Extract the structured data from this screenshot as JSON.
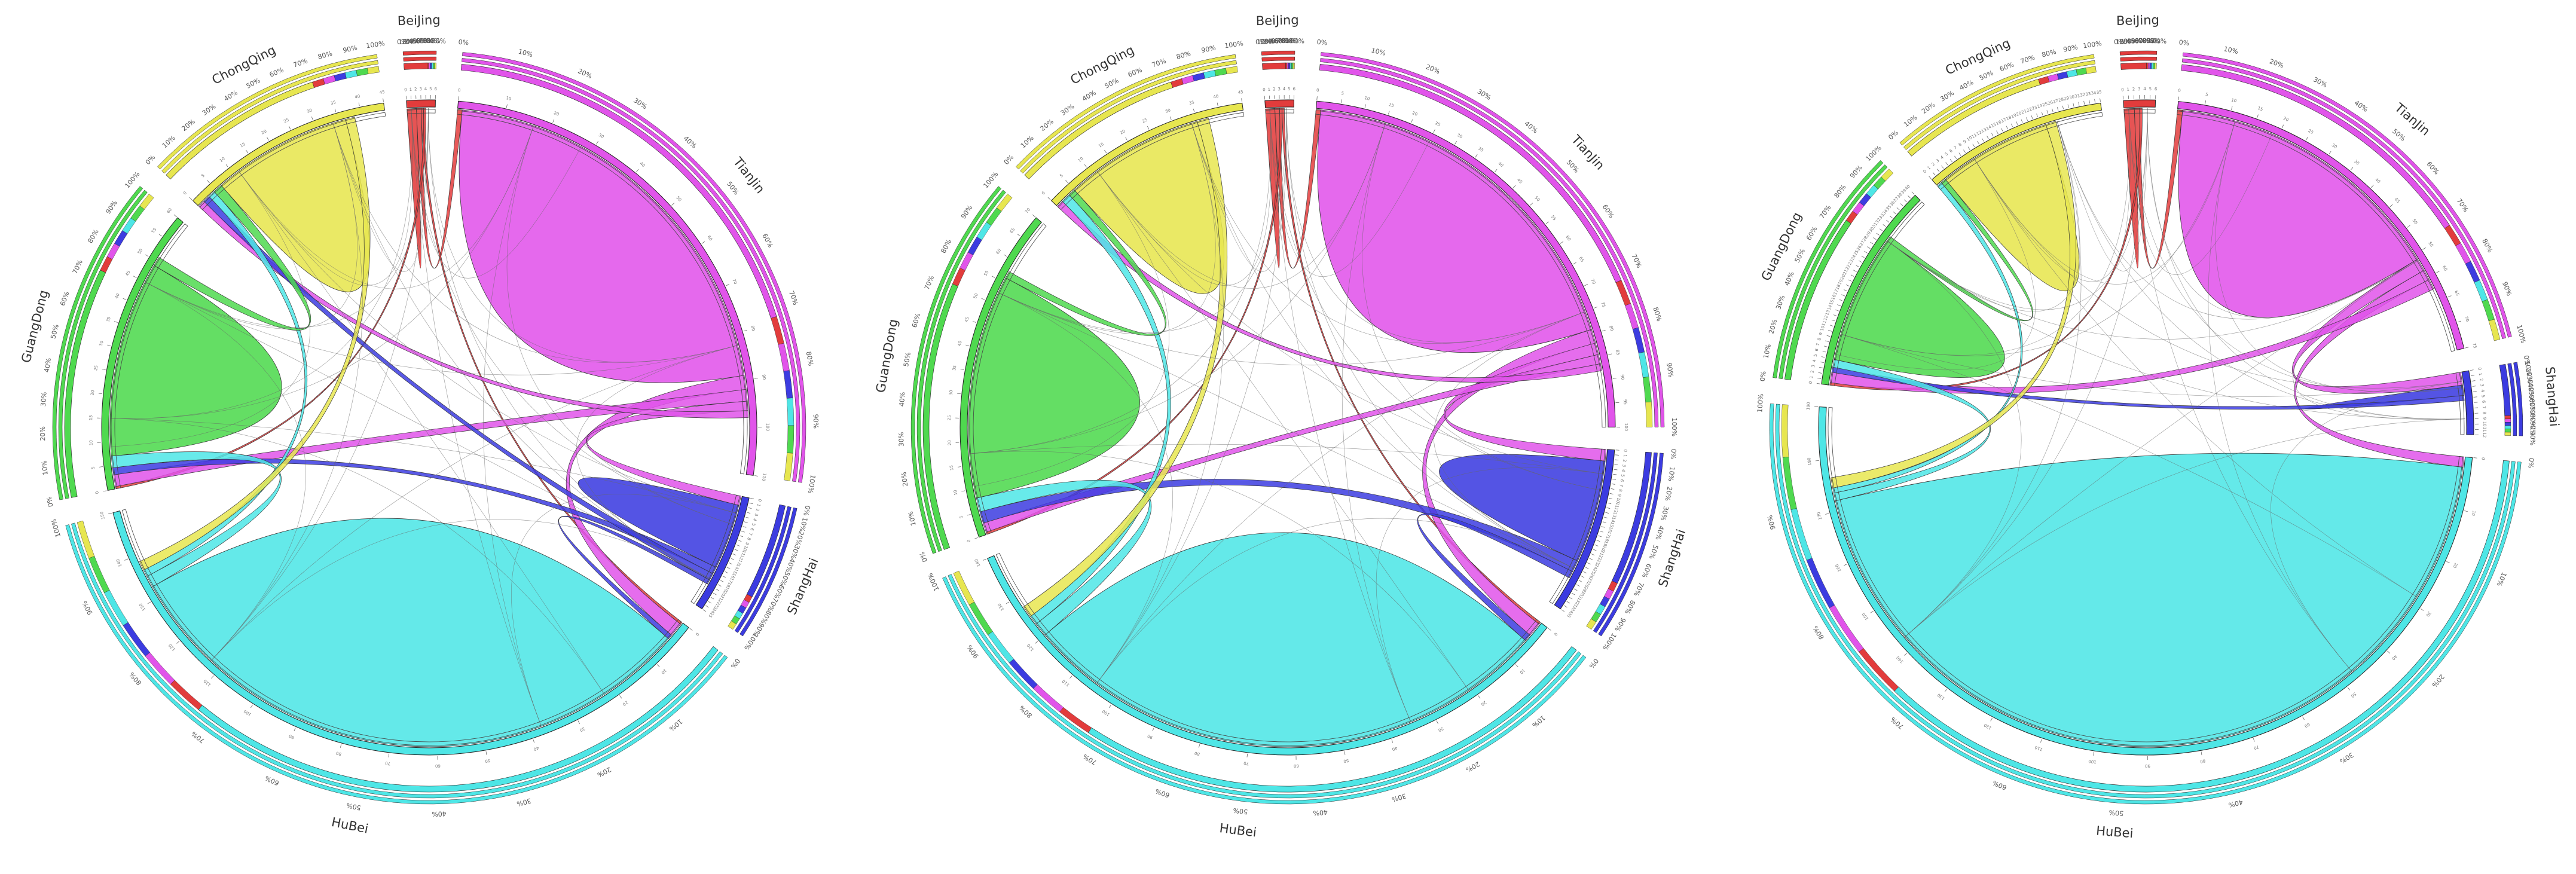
{
  "colors": {
    "BeiJing": "#e23c3c",
    "TianJin": "#e154ea",
    "ShangHai": "#3c3ce0",
    "HuBei": "#4ee6e6",
    "GuangDong": "#4fd94f",
    "ChongQing": "#e7e650",
    "ring_outline": "#444444",
    "thin_chord": "#666666"
  },
  "icons": {
    "chart_marks": "svg-paths"
  },
  "percent_ticks": [
    "0%",
    "10%",
    "20%",
    "30%",
    "40%",
    "50%",
    "60%",
    "70%",
    "80%",
    "90%",
    "100%"
  ],
  "chart_data": [
    {
      "type": "chord",
      "sectors": [
        {
          "name": "BeiJing",
          "size": 6,
          "color_key": "BeiJing"
        },
        {
          "name": "TianJin",
          "size": 110,
          "color_key": "TianJin"
        },
        {
          "name": "ShangHai",
          "size": 25,
          "color_key": "ShangHai"
        },
        {
          "name": "HuBei",
          "size": 150,
          "color_key": "HuBei"
        },
        {
          "name": "GuangDong",
          "size": 60,
          "color_key": "GuangDong"
        },
        {
          "name": "ChongQing",
          "size": 45,
          "color_key": "ChongQing"
        }
      ],
      "flows": [
        [
          "BeiJing",
          "BeiJing",
          2
        ],
        [
          "BeiJing",
          "TianJin",
          2
        ],
        [
          "BeiJing",
          "HuBei",
          1
        ],
        [
          "BeiJing",
          "GuangDong",
          1
        ],
        [
          "TianJin",
          "TianJin",
          88
        ],
        [
          "TianJin",
          "HuBei",
          6
        ],
        [
          "TianJin",
          "GuangDong",
          5
        ],
        [
          "TianJin",
          "ShangHai",
          4
        ],
        [
          "TianJin",
          "ChongQing",
          3
        ],
        [
          "ShangHai",
          "ShangHai",
          14
        ],
        [
          "ShangHai",
          "GuangDong",
          3
        ],
        [
          "ShangHai",
          "ChongQing",
          3
        ],
        [
          "ShangHai",
          "HuBei",
          2
        ],
        [
          "HuBei",
          "HuBei",
          128
        ],
        [
          "HuBei",
          "GuangDong",
          5
        ],
        [
          "HuBei",
          "ChongQing",
          3
        ],
        [
          "GuangDong",
          "GuangDong",
          42
        ],
        [
          "GuangDong",
          "ChongQing",
          4
        ],
        [
          "ChongQing",
          "ChongQing",
          30
        ],
        [
          "ChongQing",
          "HuBei",
          4
        ]
      ]
    },
    {
      "type": "chord",
      "sectors": [
        {
          "name": "BeiJing",
          "size": 6,
          "color_key": "BeiJing"
        },
        {
          "name": "TianJin",
          "size": 100,
          "color_key": "TianJin"
        },
        {
          "name": "ShangHai",
          "size": 35,
          "color_key": "ShangHai"
        },
        {
          "name": "HuBei",
          "size": 140,
          "color_key": "HuBei"
        },
        {
          "name": "GuangDong",
          "size": 70,
          "color_key": "GuangDong"
        },
        {
          "name": "ChongQing",
          "size": 45,
          "color_key": "ChongQing"
        }
      ],
      "flows": [
        [
          "BeiJing",
          "BeiJing",
          2
        ],
        [
          "BeiJing",
          "TianJin",
          2
        ],
        [
          "BeiJing",
          "GuangDong",
          1
        ],
        [
          "BeiJing",
          "HuBei",
          1
        ],
        [
          "TianJin",
          "TianJin",
          78
        ],
        [
          "TianJin",
          "HuBei",
          6
        ],
        [
          "TianJin",
          "ShangHai",
          5
        ],
        [
          "TianJin",
          "GuangDong",
          4
        ],
        [
          "TianJin",
          "ChongQing",
          3
        ],
        [
          "ShangHai",
          "ShangHai",
          22
        ],
        [
          "ShangHai",
          "GuangDong",
          5
        ],
        [
          "ShangHai",
          "HuBei",
          3
        ],
        [
          "HuBei",
          "HuBei",
          115
        ],
        [
          "HuBei",
          "GuangDong",
          6
        ],
        [
          "HuBei",
          "ChongQing",
          4
        ],
        [
          "GuangDong",
          "GuangDong",
          48
        ],
        [
          "GuangDong",
          "ChongQing",
          3
        ],
        [
          "ChongQing",
          "ChongQing",
          30
        ],
        [
          "ChongQing",
          "HuBei",
          5
        ]
      ]
    },
    {
      "type": "chord",
      "sectors": [
        {
          "name": "BeiJing",
          "size": 6,
          "color_key": "BeiJing"
        },
        {
          "name": "TianJin",
          "size": 75,
          "color_key": "TianJin"
        },
        {
          "name": "ShangHai",
          "size": 12,
          "color_key": "ShangHai"
        },
        {
          "name": "HuBei",
          "size": 190,
          "color_key": "HuBei"
        },
        {
          "name": "GuangDong",
          "size": 40,
          "color_key": "GuangDong"
        },
        {
          "name": "ChongQing",
          "size": 35,
          "color_key": "ChongQing"
        }
      ],
      "flows": [
        [
          "BeiJing",
          "BeiJing",
          2
        ],
        [
          "BeiJing",
          "TianJin",
          2
        ],
        [
          "BeiJing",
          "GuangDong",
          1
        ],
        [
          "TianJin",
          "TianJin",
          55
        ],
        [
          "TianJin",
          "ShangHai",
          5
        ],
        [
          "TianJin",
          "HuBei",
          4
        ],
        [
          "TianJin",
          "GuangDong",
          4
        ],
        [
          "ShangHai",
          "ShangHai",
          2
        ],
        [
          "ShangHai",
          "GuangDong",
          2
        ],
        [
          "HuBei",
          "HuBei",
          170
        ],
        [
          "HuBei",
          "GuangDong",
          3
        ],
        [
          "HuBei",
          "ChongQing",
          2
        ],
        [
          "GuangDong",
          "GuangDong",
          25
        ],
        [
          "GuangDong",
          "ChongQing",
          2
        ],
        [
          "ChongQing",
          "ChongQing",
          22
        ],
        [
          "ChongQing",
          "HuBei",
          4
        ]
      ]
    }
  ]
}
